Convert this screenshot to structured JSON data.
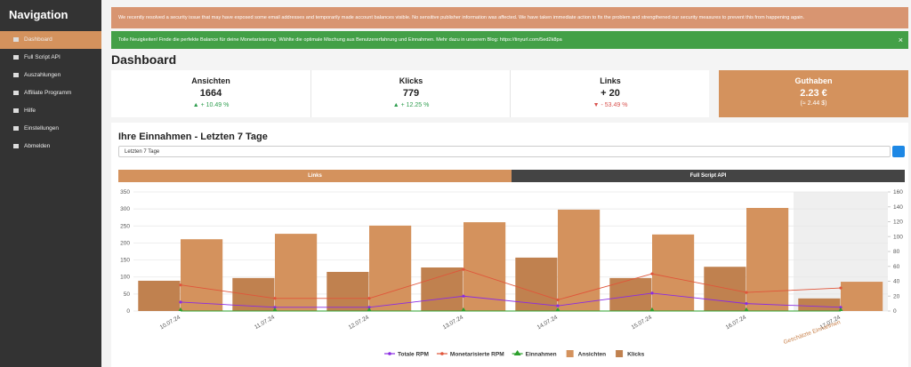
{
  "sidebar": {
    "title": "Navigation",
    "items": [
      "Dashboard",
      "Full Script API",
      "Auszahlungen",
      "Affiliate Programm",
      "Hilfe",
      "Einstellungen",
      "Abmelden"
    ]
  },
  "alerts": [
    {
      "text": "We recently resolved a security issue that may have exposed some email addresses and temporarily made account balances visible. No sensitive publisher information was affected. We have taken immediate action to fix the problem and strengthened our security measures to prevent this from happening again."
    },
    {
      "text": "Tolle Neuigkeiten! Finde die perfekte Balance für deine Monetarisierung. Wählte die optimale Mischung aus Benutzererfahrung und Einnahmen. Mehr dazu in unserem Blog: https://tinyurl.com/5ed2k8pa",
      "close": "×"
    }
  ],
  "page_title": "Dashboard",
  "stats": [
    {
      "label": "Ansichten",
      "value": "1664",
      "change": "+ 10.49 %"
    },
    {
      "label": "Klicks",
      "value": "779",
      "change": "+ 12.25 %"
    },
    {
      "label": "Links",
      "value": "+ 20",
      "change": "- 53.49 %"
    }
  ],
  "balance": {
    "label": "Guthaben",
    "value": "2.23 €",
    "sub": "(≈ 2.44 $)"
  },
  "panel": {
    "title": "Ihre Einnahmen - Letzten 7 Tage",
    "select": "Letzten 7 Tage",
    "tabs": [
      "Links",
      "Full Script API"
    ]
  },
  "chart_data": {
    "type": "bar",
    "categories": [
      "10.07.24",
      "11.07.24",
      "12.07.24",
      "13.07.24",
      "14.07.24",
      "15.07.24",
      "16.07.24",
      "17.07.24"
    ],
    "annotation": "Geschätzte Einnahmen",
    "series": [
      {
        "name": "Totale RPM",
        "type": "line",
        "axis": "y2",
        "color": "#8a2be2",
        "values": [
          12,
          5,
          5,
          20,
          7,
          24,
          10,
          5
        ]
      },
      {
        "name": "Monetarisierte RPM",
        "type": "line",
        "axis": "y2",
        "color": "#e0553a",
        "values": [
          35,
          17,
          17,
          56,
          15,
          50,
          25,
          31
        ]
      },
      {
        "name": "Einnahmen",
        "type": "line",
        "axis": "y2",
        "color": "#2ca02c",
        "values": [
          0,
          0,
          0,
          0,
          0,
          0,
          0,
          0
        ]
      },
      {
        "name": "Ansichten",
        "type": "bar",
        "color": "#d4925d",
        "values": [
          211,
          227,
          251,
          261,
          298,
          225,
          303,
          86
        ]
      },
      {
        "name": "Klicks",
        "type": "bar",
        "color": "#c0814f",
        "values": [
          89,
          97,
          115,
          128,
          157,
          97,
          130,
          37
        ]
      }
    ],
    "ylim": [
      0,
      350
    ],
    "yticks": [
      0,
      50,
      100,
      150,
      200,
      250,
      300,
      350
    ],
    "y2lim": [
      0,
      160
    ],
    "y2ticks": [
      0,
      20,
      40,
      60,
      80,
      100,
      120,
      140,
      160
    ],
    "grid": true,
    "legend": "bottom"
  }
}
